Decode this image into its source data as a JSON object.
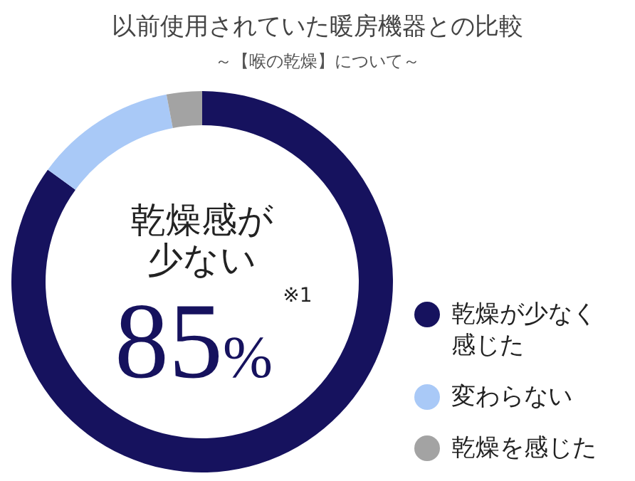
{
  "chart_data": {
    "type": "donut",
    "title": "以前使用されていた暖房機器との比較",
    "subtitle": "～【喉の乾燥】について～",
    "categories": [
      "乾燥が少なく感じた",
      "変わらない",
      "乾燥を感じた"
    ],
    "values": [
      85,
      12,
      3
    ],
    "colors": [
      "#16125e",
      "#a9c9f7",
      "#a3a3a3"
    ],
    "value_labels": [
      "85%",
      null,
      null
    ],
    "annotations": [
      "乾燥感が少ない",
      "※1"
    ],
    "legend": "right"
  }
}
